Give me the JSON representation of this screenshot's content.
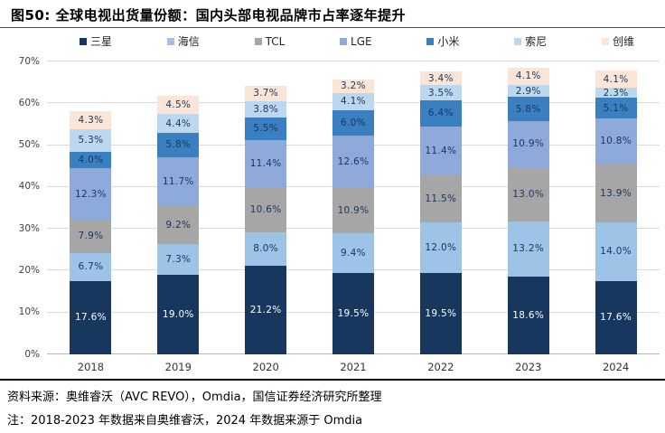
{
  "title": "图50: 全球电视出货量份额：国内头部电视品牌市占率逐年提升",
  "footer": {
    "source": "资料来源：奥维睿沃（AVC REVO），Omdia，国信证券经济研究所整理",
    "note": "注：2018-2023 年数据来自奥维睿沃，2024 年数据来源于 Omdia"
  },
  "chart_data": {
    "type": "bar",
    "stacked": true,
    "title": "全球电视出货量份额",
    "categories": [
      "2018",
      "2019",
      "2020",
      "2021",
      "2022",
      "2023",
      "2024"
    ],
    "series": [
      {
        "name": "三星",
        "color": "#17375E",
        "label_color": "#FFFFFF",
        "values": [
          17.6,
          19.0,
          21.2,
          19.5,
          19.5,
          18.6,
          17.6
        ]
      },
      {
        "name": "海信",
        "color": "#9DC3E6",
        "label_color": "#17375E",
        "values": [
          6.7,
          7.3,
          8.0,
          9.4,
          12.0,
          13.2,
          14.0
        ]
      },
      {
        "name": "TCL",
        "color": "#A6A6A6",
        "label_color": "#17375E",
        "values": [
          7.9,
          9.2,
          10.6,
          10.9,
          11.5,
          13.0,
          13.9
        ]
      },
      {
        "name": "LGE",
        "color": "#8EAADB",
        "label_color": "#17375E",
        "values": [
          12.3,
          11.7,
          11.4,
          12.6,
          11.4,
          10.9,
          10.8
        ]
      },
      {
        "name": "小米",
        "color": "#3A80C1",
        "label_color": "#17375E",
        "values": [
          4.0,
          5.8,
          5.5,
          6.0,
          6.4,
          5.8,
          5.1
        ]
      },
      {
        "name": "索尼",
        "color": "#BDD7EE",
        "label_color": "#17375E",
        "values": [
          5.3,
          4.4,
          3.8,
          4.1,
          3.5,
          2.9,
          2.3
        ]
      },
      {
        "name": "创维",
        "color": "#FBE5D6",
        "label_color": "#17375E",
        "values": [
          4.3,
          4.5,
          3.7,
          3.2,
          3.4,
          4.1,
          4.1
        ]
      }
    ],
    "xlabel": "",
    "ylabel": "",
    "ylim": [
      0,
      70
    ],
    "ytick_step": 10,
    "ytick_labels": [
      "0%",
      "10%",
      "20%",
      "30%",
      "40%",
      "50%",
      "60%",
      "70%"
    ],
    "value_suffix": "%",
    "value_decimals": 1,
    "grid": true,
    "legend_position": "top"
  }
}
